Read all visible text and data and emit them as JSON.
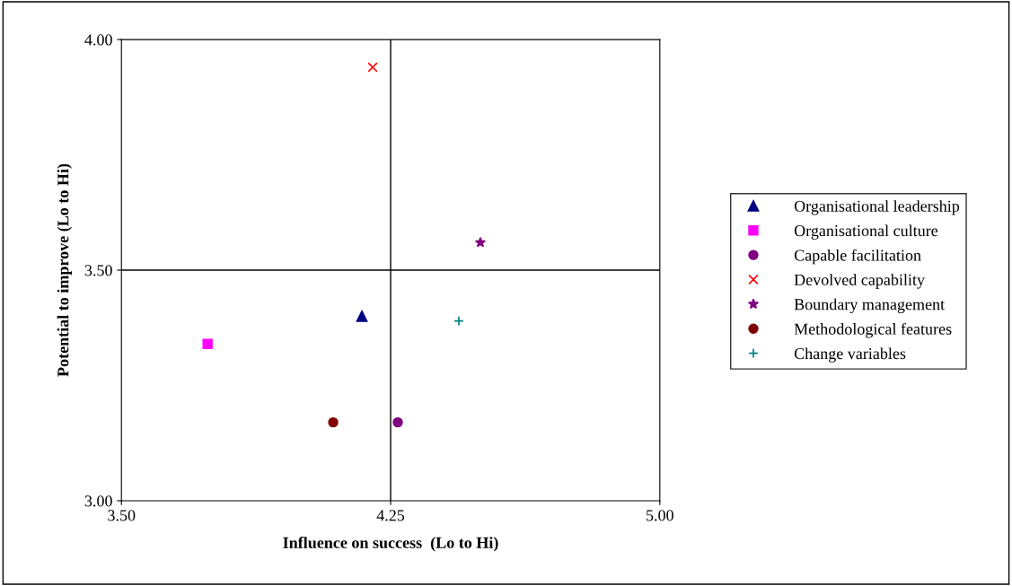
{
  "chart_data": {
    "type": "scatter",
    "xlabel": "Influence on success  (Lo to Hi)",
    "ylabel": "Potential to improve (Lo to Hi)",
    "xlim": [
      3.5,
      5.0
    ],
    "xticks": [
      {
        "value": 3.5,
        "label": "3.50"
      },
      {
        "value": 4.25,
        "label": "4.25"
      },
      {
        "value": 5.0,
        "label": "5.00"
      }
    ],
    "ylim": [
      3.0,
      4.0
    ],
    "yticks": [
      {
        "value": 3.0,
        "label": "3.00"
      },
      {
        "value": 3.5,
        "label": "3.50"
      },
      {
        "value": 4.0,
        "label": "4.00"
      }
    ],
    "grid": false,
    "legend": "right",
    "ref_lines": [
      {
        "axis": "x",
        "value": 4.25,
        "label": null,
        "color": "#000000"
      },
      {
        "axis": "y",
        "value": 3.5,
        "label": null,
        "color": "#000000"
      }
    ],
    "series": [
      {
        "name": "Organisational leadership",
        "color": "#000080",
        "marker": "triangle",
        "x": [
          4.17
        ],
        "values": [
          3.4
        ]
      },
      {
        "name": "Organisational culture",
        "color": "#ff00ff",
        "marker": "square",
        "x": [
          3.74
        ],
        "values": [
          3.34
        ]
      },
      {
        "name": "Capable facilitation",
        "color": "#800080",
        "marker": "circle",
        "x": [
          4.27
        ],
        "values": [
          3.17
        ]
      },
      {
        "name": "Devolved capability",
        "color": "#ff0000",
        "marker": "cross",
        "x": [
          4.2
        ],
        "values": [
          3.94
        ]
      },
      {
        "name": "Boundary management",
        "color": "#800080",
        "marker": "star",
        "x": [
          4.5
        ],
        "values": [
          3.56
        ]
      },
      {
        "name": "Methodological features",
        "color": "#800000",
        "marker": "circle",
        "x": [
          4.09
        ],
        "values": [
          3.17
        ]
      },
      {
        "name": "Change variables",
        "color": "#008080",
        "marker": "plus",
        "x": [
          4.44
        ],
        "values": [
          3.39
        ]
      }
    ]
  }
}
